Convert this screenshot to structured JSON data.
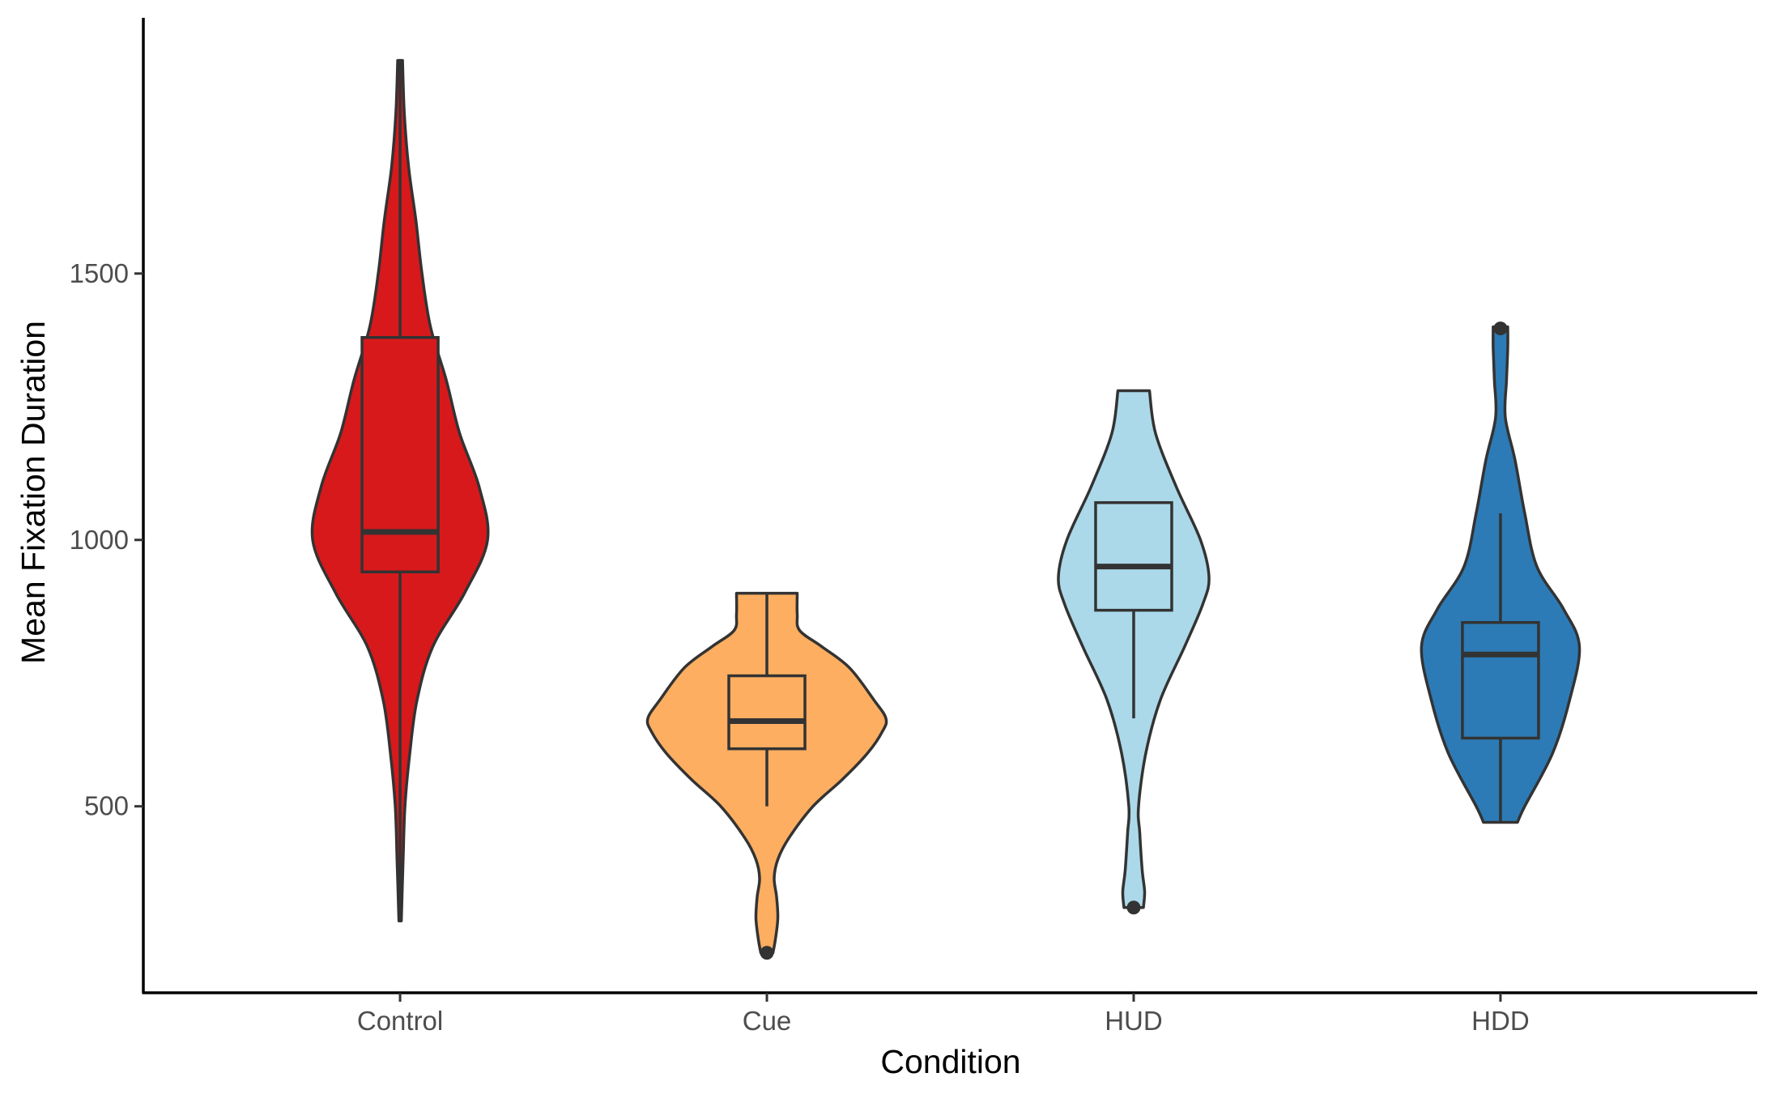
{
  "chart_data": {
    "type": "violin",
    "xlabel": "Condition",
    "ylabel": "Mean Fixation Duration",
    "categories": [
      "Control",
      "Cue",
      "HUD",
      "HDD"
    ],
    "ylim": [
      150,
      1980
    ],
    "yticks": [
      500,
      1000,
      1500
    ],
    "grid": false,
    "legend": "none",
    "series": [
      {
        "category": "Control",
        "color": "#d7191c",
        "min": 285,
        "max": 1900,
        "box": {
          "q1": 940,
          "median": 1015,
          "q3": 1380,
          "whisker_low": 285,
          "whisker_high": 1900
        },
        "outliers": [],
        "density": [
          [
            285,
            0.01
          ],
          [
            400,
            0.025
          ],
          [
            500,
            0.04
          ],
          [
            600,
            0.08
          ],
          [
            700,
            0.14
          ],
          [
            800,
            0.27
          ],
          [
            900,
            0.53
          ],
          [
            1000,
            0.72
          ],
          [
            1100,
            0.65
          ],
          [
            1200,
            0.49
          ],
          [
            1300,
            0.38
          ],
          [
            1400,
            0.25
          ],
          [
            1500,
            0.18
          ],
          [
            1600,
            0.13
          ],
          [
            1700,
            0.07
          ],
          [
            1800,
            0.035
          ],
          [
            1900,
            0.02
          ]
        ]
      },
      {
        "category": "Cue",
        "color": "#fdae61",
        "min": 225,
        "max": 900,
        "box": {
          "q1": 608,
          "median": 660,
          "q3": 745,
          "whisker_low": 500,
          "whisker_high": 900
        },
        "outliers": [
          225
        ],
        "density": [
          [
            225,
            0.05
          ],
          [
            250,
            0.07
          ],
          [
            290,
            0.09
          ],
          [
            330,
            0.08
          ],
          [
            365,
            0.06
          ],
          [
            400,
            0.09
          ],
          [
            440,
            0.18
          ],
          [
            500,
            0.38
          ],
          [
            550,
            0.62
          ],
          [
            600,
            0.83
          ],
          [
            640,
            0.95
          ],
          [
            665,
            0.98
          ],
          [
            700,
            0.88
          ],
          [
            760,
            0.68
          ],
          [
            800,
            0.45
          ],
          [
            830,
            0.27
          ],
          [
            860,
            0.25
          ],
          [
            900,
            0.25
          ]
        ]
      },
      {
        "category": "HUD",
        "color": "#abd9e9",
        "min": 310,
        "max": 1280,
        "box": {
          "q1": 868,
          "median": 950,
          "q3": 1070,
          "whisker_low": 665,
          "whisker_high": 1070
        },
        "outliers": [
          310
        ],
        "density": [
          [
            310,
            0.08
          ],
          [
            340,
            0.09
          ],
          [
            380,
            0.07
          ],
          [
            450,
            0.05
          ],
          [
            500,
            0.04
          ],
          [
            600,
            0.1
          ],
          [
            700,
            0.22
          ],
          [
            800,
            0.42
          ],
          [
            880,
            0.57
          ],
          [
            930,
            0.62
          ],
          [
            1000,
            0.55
          ],
          [
            1100,
            0.35
          ],
          [
            1200,
            0.18
          ],
          [
            1280,
            0.13
          ]
        ]
      },
      {
        "category": "HDD",
        "color": "#2c7bb6",
        "min": 470,
        "max": 1400,
        "box": {
          "q1": 628,
          "median": 785,
          "q3": 845,
          "whisker_low": 470,
          "whisker_high": 1050
        },
        "outliers": [
          1397
        ],
        "density": [
          [
            470,
            0.14
          ],
          [
            500,
            0.2
          ],
          [
            600,
            0.43
          ],
          [
            700,
            0.57
          ],
          [
            800,
            0.65
          ],
          [
            870,
            0.52
          ],
          [
            950,
            0.3
          ],
          [
            1050,
            0.2
          ],
          [
            1150,
            0.12
          ],
          [
            1230,
            0.04
          ],
          [
            1300,
            0.05
          ],
          [
            1360,
            0.06
          ],
          [
            1400,
            0.06
          ]
        ]
      }
    ]
  }
}
